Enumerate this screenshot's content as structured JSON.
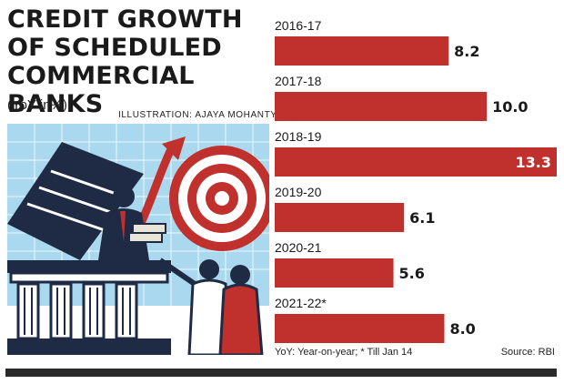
{
  "chart_data": {
    "type": "bar",
    "orientation": "horizontal",
    "title": "CREDIT GROWTH OF SCHEDULED COMMERCIAL BANKS",
    "subtitle": "(YoY in%)",
    "categories": [
      "2016-17",
      "2017-18",
      "2018-19",
      "2019-20",
      "2020-21",
      "2021-22*"
    ],
    "values": [
      8.2,
      10.0,
      13.3,
      6.1,
      5.6,
      8.0
    ],
    "value_labels": [
      "8.2",
      "10.0",
      "13.3",
      "6.1",
      "5.6",
      "8.0"
    ],
    "bar_color": "#c0302c",
    "xlim": [
      0,
      13.3
    ]
  },
  "credit": "ILLUSTRATION: AJAYA MOHANTY",
  "footnote": "YoY: Year-on-year; * Till Jan 14",
  "source": "Source: RBI",
  "colors": {
    "bar": "#c0302c",
    "illustration_red": "#c0302c",
    "illustration_blue": "#9fd3ec",
    "illustration_dark": "#1f2a44"
  }
}
